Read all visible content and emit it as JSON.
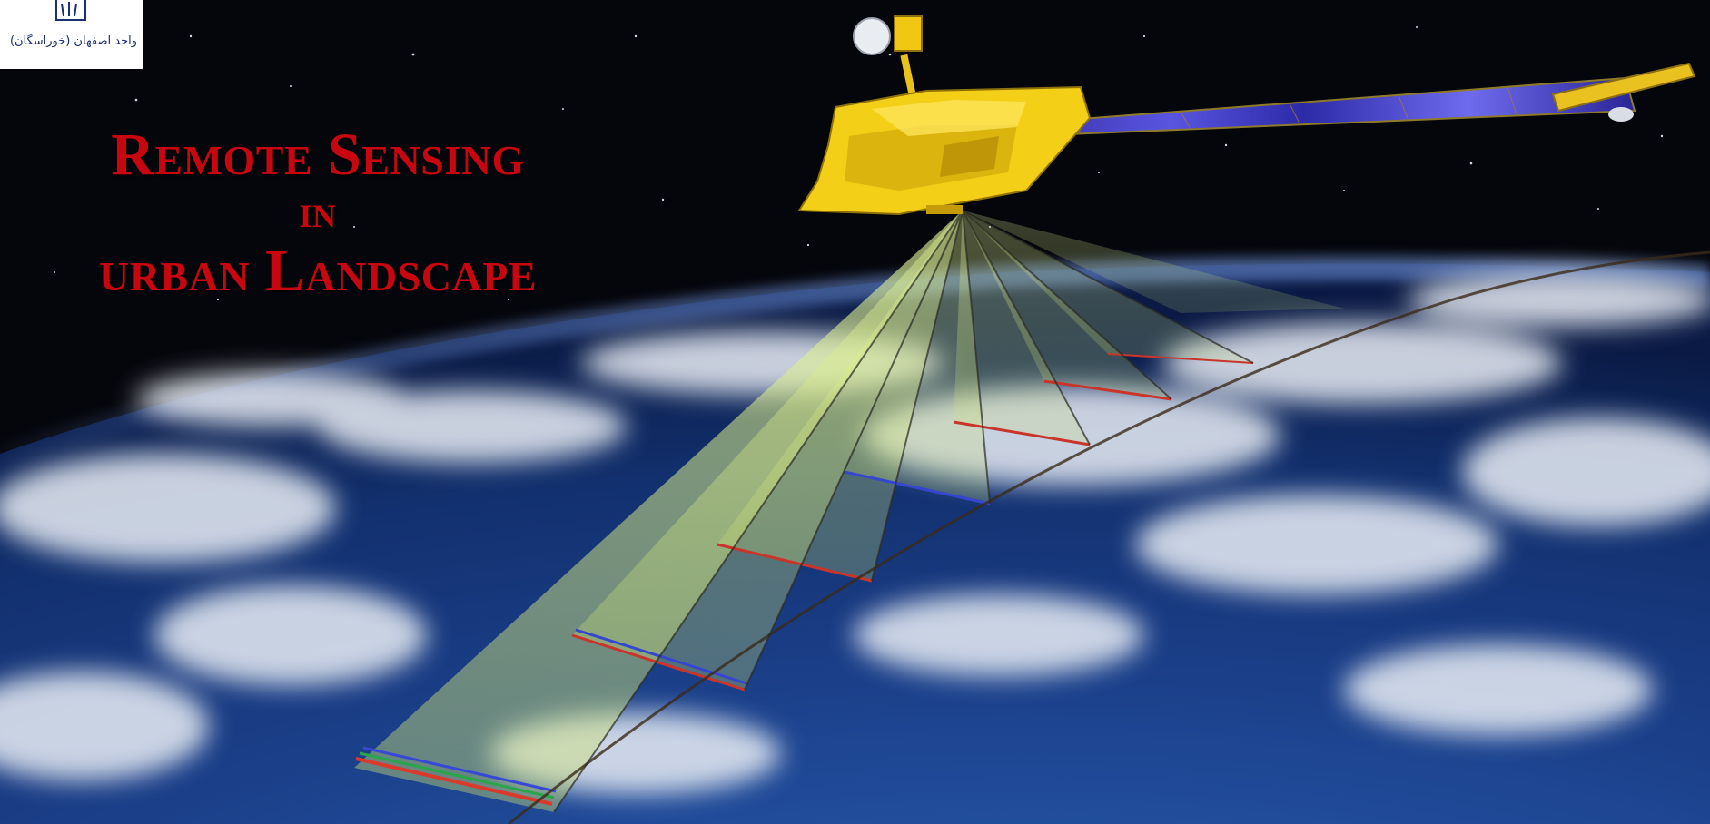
{
  "logo": {
    "icon": "university-seal-icon",
    "text": "واحد اصفهان (خوراسگان)"
  },
  "title": {
    "line1": "Remote Sensing",
    "line2": "in",
    "line3": "urban Landscape"
  },
  "colors": {
    "title": "#c8060f",
    "space": "#05060c",
    "ocean": "#1b3f8a",
    "swath": "#d9f07a",
    "satellite_body": "#f3cf17",
    "solar_panel": "#3d37b8"
  }
}
